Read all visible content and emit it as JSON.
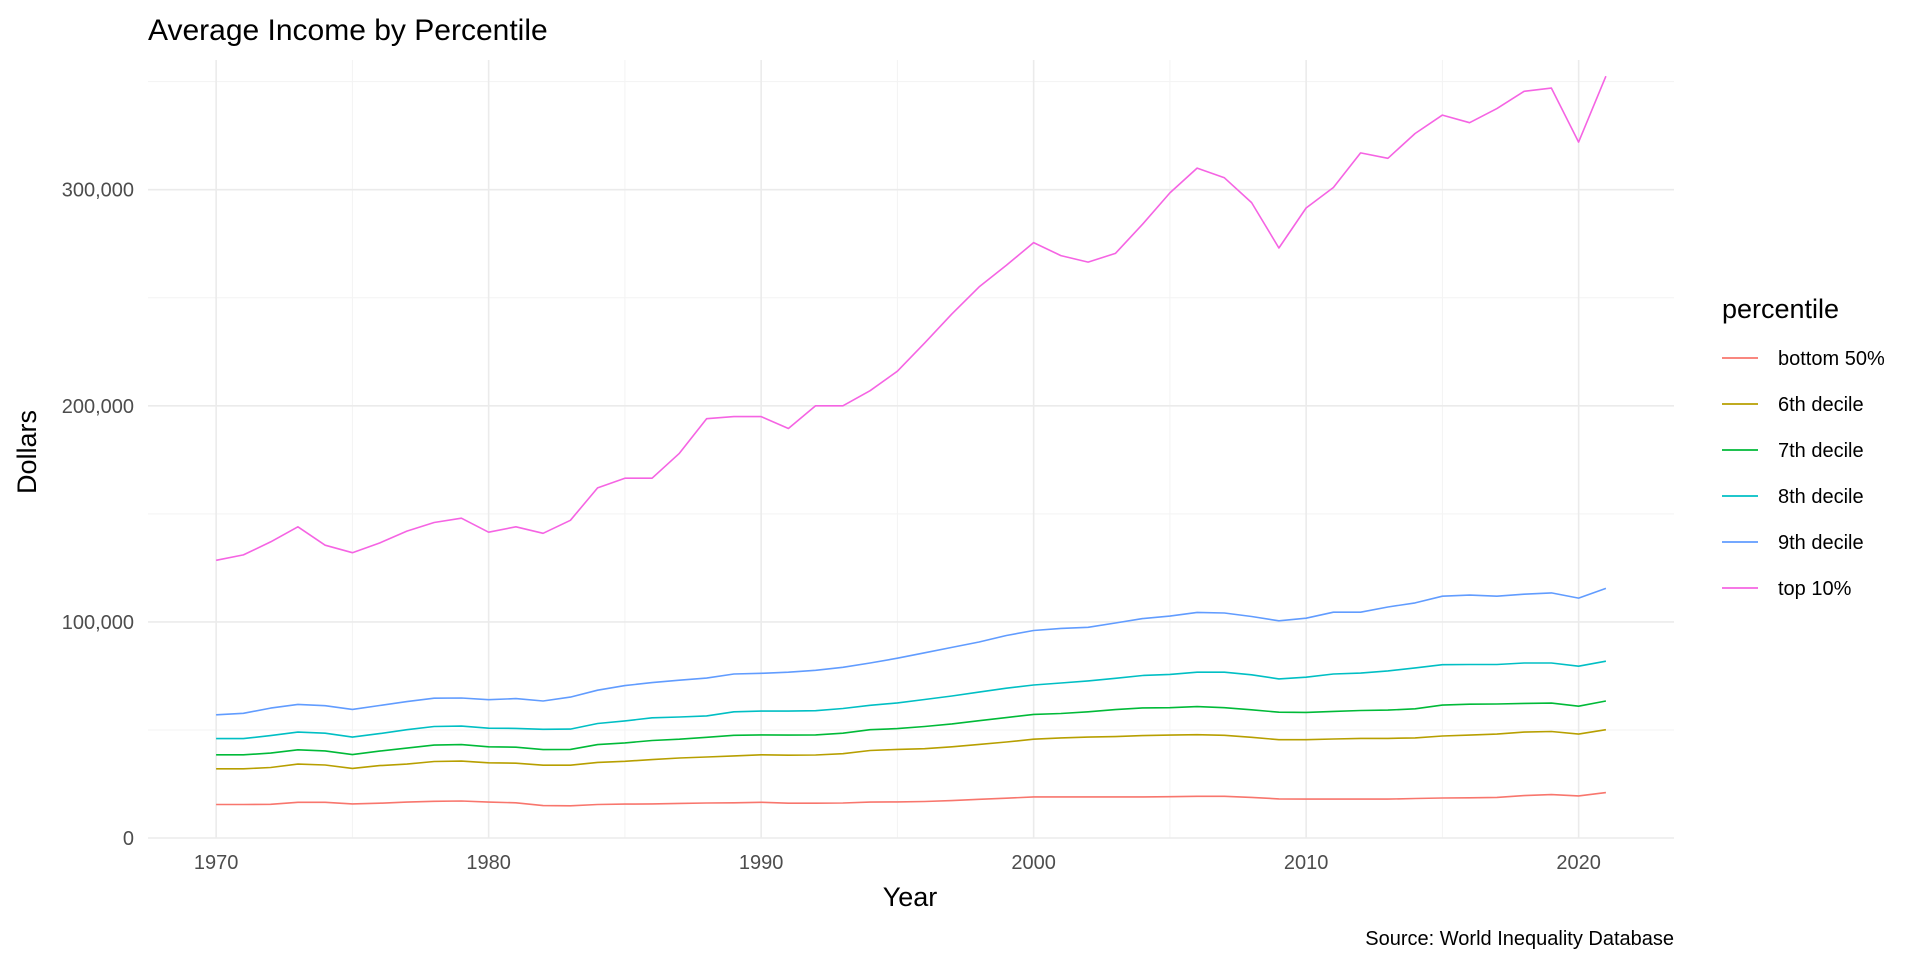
{
  "chart_data": {
    "type": "line",
    "title": "Average Income by Percentile",
    "xlabel": "Year",
    "ylabel": "Dollars",
    "caption": "Source: World Inequality Database",
    "legend_title": "percentile",
    "legend_position": "right",
    "grid": true,
    "xlim": [
      1967.5,
      2023.5
    ],
    "ylim": [
      0,
      360000
    ],
    "x_ticks": [
      1970,
      1980,
      1990,
      2000,
      2010,
      2020
    ],
    "y_ticks": [
      0,
      100000,
      200000,
      300000
    ],
    "x_tick_labels": [
      "1970",
      "1980",
      "1990",
      "2000",
      "2010",
      "2020"
    ],
    "y_tick_labels": [
      "0",
      "100,000",
      "200,000",
      "300,000"
    ],
    "x": [
      1970,
      1971,
      1972,
      1973,
      1974,
      1975,
      1976,
      1977,
      1978,
      1979,
      1980,
      1981,
      1982,
      1983,
      1984,
      1985,
      1986,
      1987,
      1988,
      1989,
      1990,
      1991,
      1992,
      1993,
      1994,
      1995,
      1996,
      1997,
      1998,
      1999,
      2000,
      2001,
      2002,
      2003,
      2004,
      2005,
      2006,
      2007,
      2008,
      2009,
      2010,
      2011,
      2012,
      2013,
      2014,
      2015,
      2016,
      2017,
      2018,
      2019,
      2020,
      2021
    ],
    "series": [
      {
        "name": "bottom 50%",
        "color": "#F8766D",
        "values": [
          15500,
          15500,
          15600,
          16500,
          16500,
          15800,
          16100,
          16600,
          17000,
          17100,
          16600,
          16300,
          15000,
          14900,
          15500,
          15700,
          15800,
          16000,
          16200,
          16300,
          16500,
          16100,
          16100,
          16200,
          16600,
          16700,
          16900,
          17300,
          17900,
          18400,
          19000,
          19000,
          19000,
          19000,
          19000,
          19100,
          19300,
          19300,
          18800,
          18100,
          18000,
          18000,
          18000,
          18000,
          18300,
          18500,
          18600,
          18800,
          19600,
          20100,
          19500,
          21000
        ]
      },
      {
        "name": "6th decile",
        "color": "#B79F00",
        "values": [
          32000,
          32000,
          32600,
          34200,
          33800,
          32200,
          33500,
          34200,
          35400,
          35600,
          34800,
          34600,
          33700,
          33700,
          35000,
          35500,
          36300,
          37000,
          37500,
          38000,
          38500,
          38300,
          38400,
          39000,
          40500,
          41000,
          41300,
          42200,
          43300,
          44400,
          45700,
          46300,
          46700,
          46900,
          47400,
          47600,
          47800,
          47500,
          46600,
          45500,
          45500,
          45800,
          46100,
          46100,
          46300,
          47200,
          47600,
          48100,
          49000,
          49300,
          48100,
          50100
        ]
      },
      {
        "name": "7th decile",
        "color": "#00BA38",
        "values": [
          38500,
          38500,
          39300,
          40800,
          40300,
          38600,
          40200,
          41600,
          43000,
          43200,
          42200,
          42000,
          40900,
          41000,
          43200,
          44000,
          45100,
          45700,
          46600,
          47500,
          47700,
          47600,
          47700,
          48500,
          50100,
          50600,
          51600,
          52800,
          54300,
          55700,
          57200,
          57600,
          58400,
          59400,
          60200,
          60300,
          60800,
          60300,
          59300,
          58200,
          58100,
          58600,
          59000,
          59200,
          59800,
          61500,
          61900,
          62000,
          62300,
          62400,
          61000,
          63400
        ]
      },
      {
        "name": "8th decile",
        "color": "#00BFC4",
        "values": [
          46000,
          46000,
          47400,
          49000,
          48500,
          46700,
          48300,
          50100,
          51600,
          51800,
          50800,
          50700,
          50300,
          50400,
          53000,
          54200,
          55600,
          56000,
          56500,
          58400,
          58700,
          58700,
          58900,
          59900,
          61400,
          62500,
          64100,
          65700,
          67500,
          69300,
          70800,
          71700,
          72700,
          73900,
          75200,
          75700,
          76700,
          76700,
          75500,
          73600,
          74400,
          75900,
          76300,
          77300,
          78700,
          80200,
          80300,
          80300,
          81000,
          81000,
          79500,
          81800
        ]
      },
      {
        "name": "9th decile",
        "color": "#619CFF",
        "values": [
          57000,
          57700,
          60100,
          61800,
          61200,
          59500,
          61300,
          63100,
          64700,
          64800,
          64000,
          64500,
          63400,
          65200,
          68400,
          70500,
          71900,
          73000,
          74000,
          75900,
          76200,
          76700,
          77600,
          79000,
          81000,
          83200,
          85700,
          88200,
          90700,
          93700,
          96000,
          97000,
          97500,
          99500,
          101500,
          102700,
          104400,
          104100,
          102500,
          100500,
          101700,
          104500,
          104500,
          106900,
          108800,
          111900,
          112400,
          111900,
          112800,
          113400,
          111000,
          115500
        ]
      },
      {
        "name": "top 10%",
        "color": "#F564E3",
        "values": [
          128500,
          131000,
          137000,
          144000,
          135500,
          132000,
          136500,
          142000,
          146000,
          148000,
          141500,
          144000,
          141000,
          147000,
          162000,
          166500,
          166500,
          178000,
          194000,
          195000,
          195000,
          189500,
          200000,
          200000,
          207000,
          216000,
          229000,
          242500,
          255000,
          265000,
          275500,
          269500,
          266500,
          270500,
          284000,
          298500,
          310000,
          305500,
          294000,
          273000,
          291500,
          301000,
          317000,
          314500,
          326000,
          334500,
          331000,
          337500,
          345500,
          347000,
          322000,
          352500
        ]
      }
    ]
  }
}
